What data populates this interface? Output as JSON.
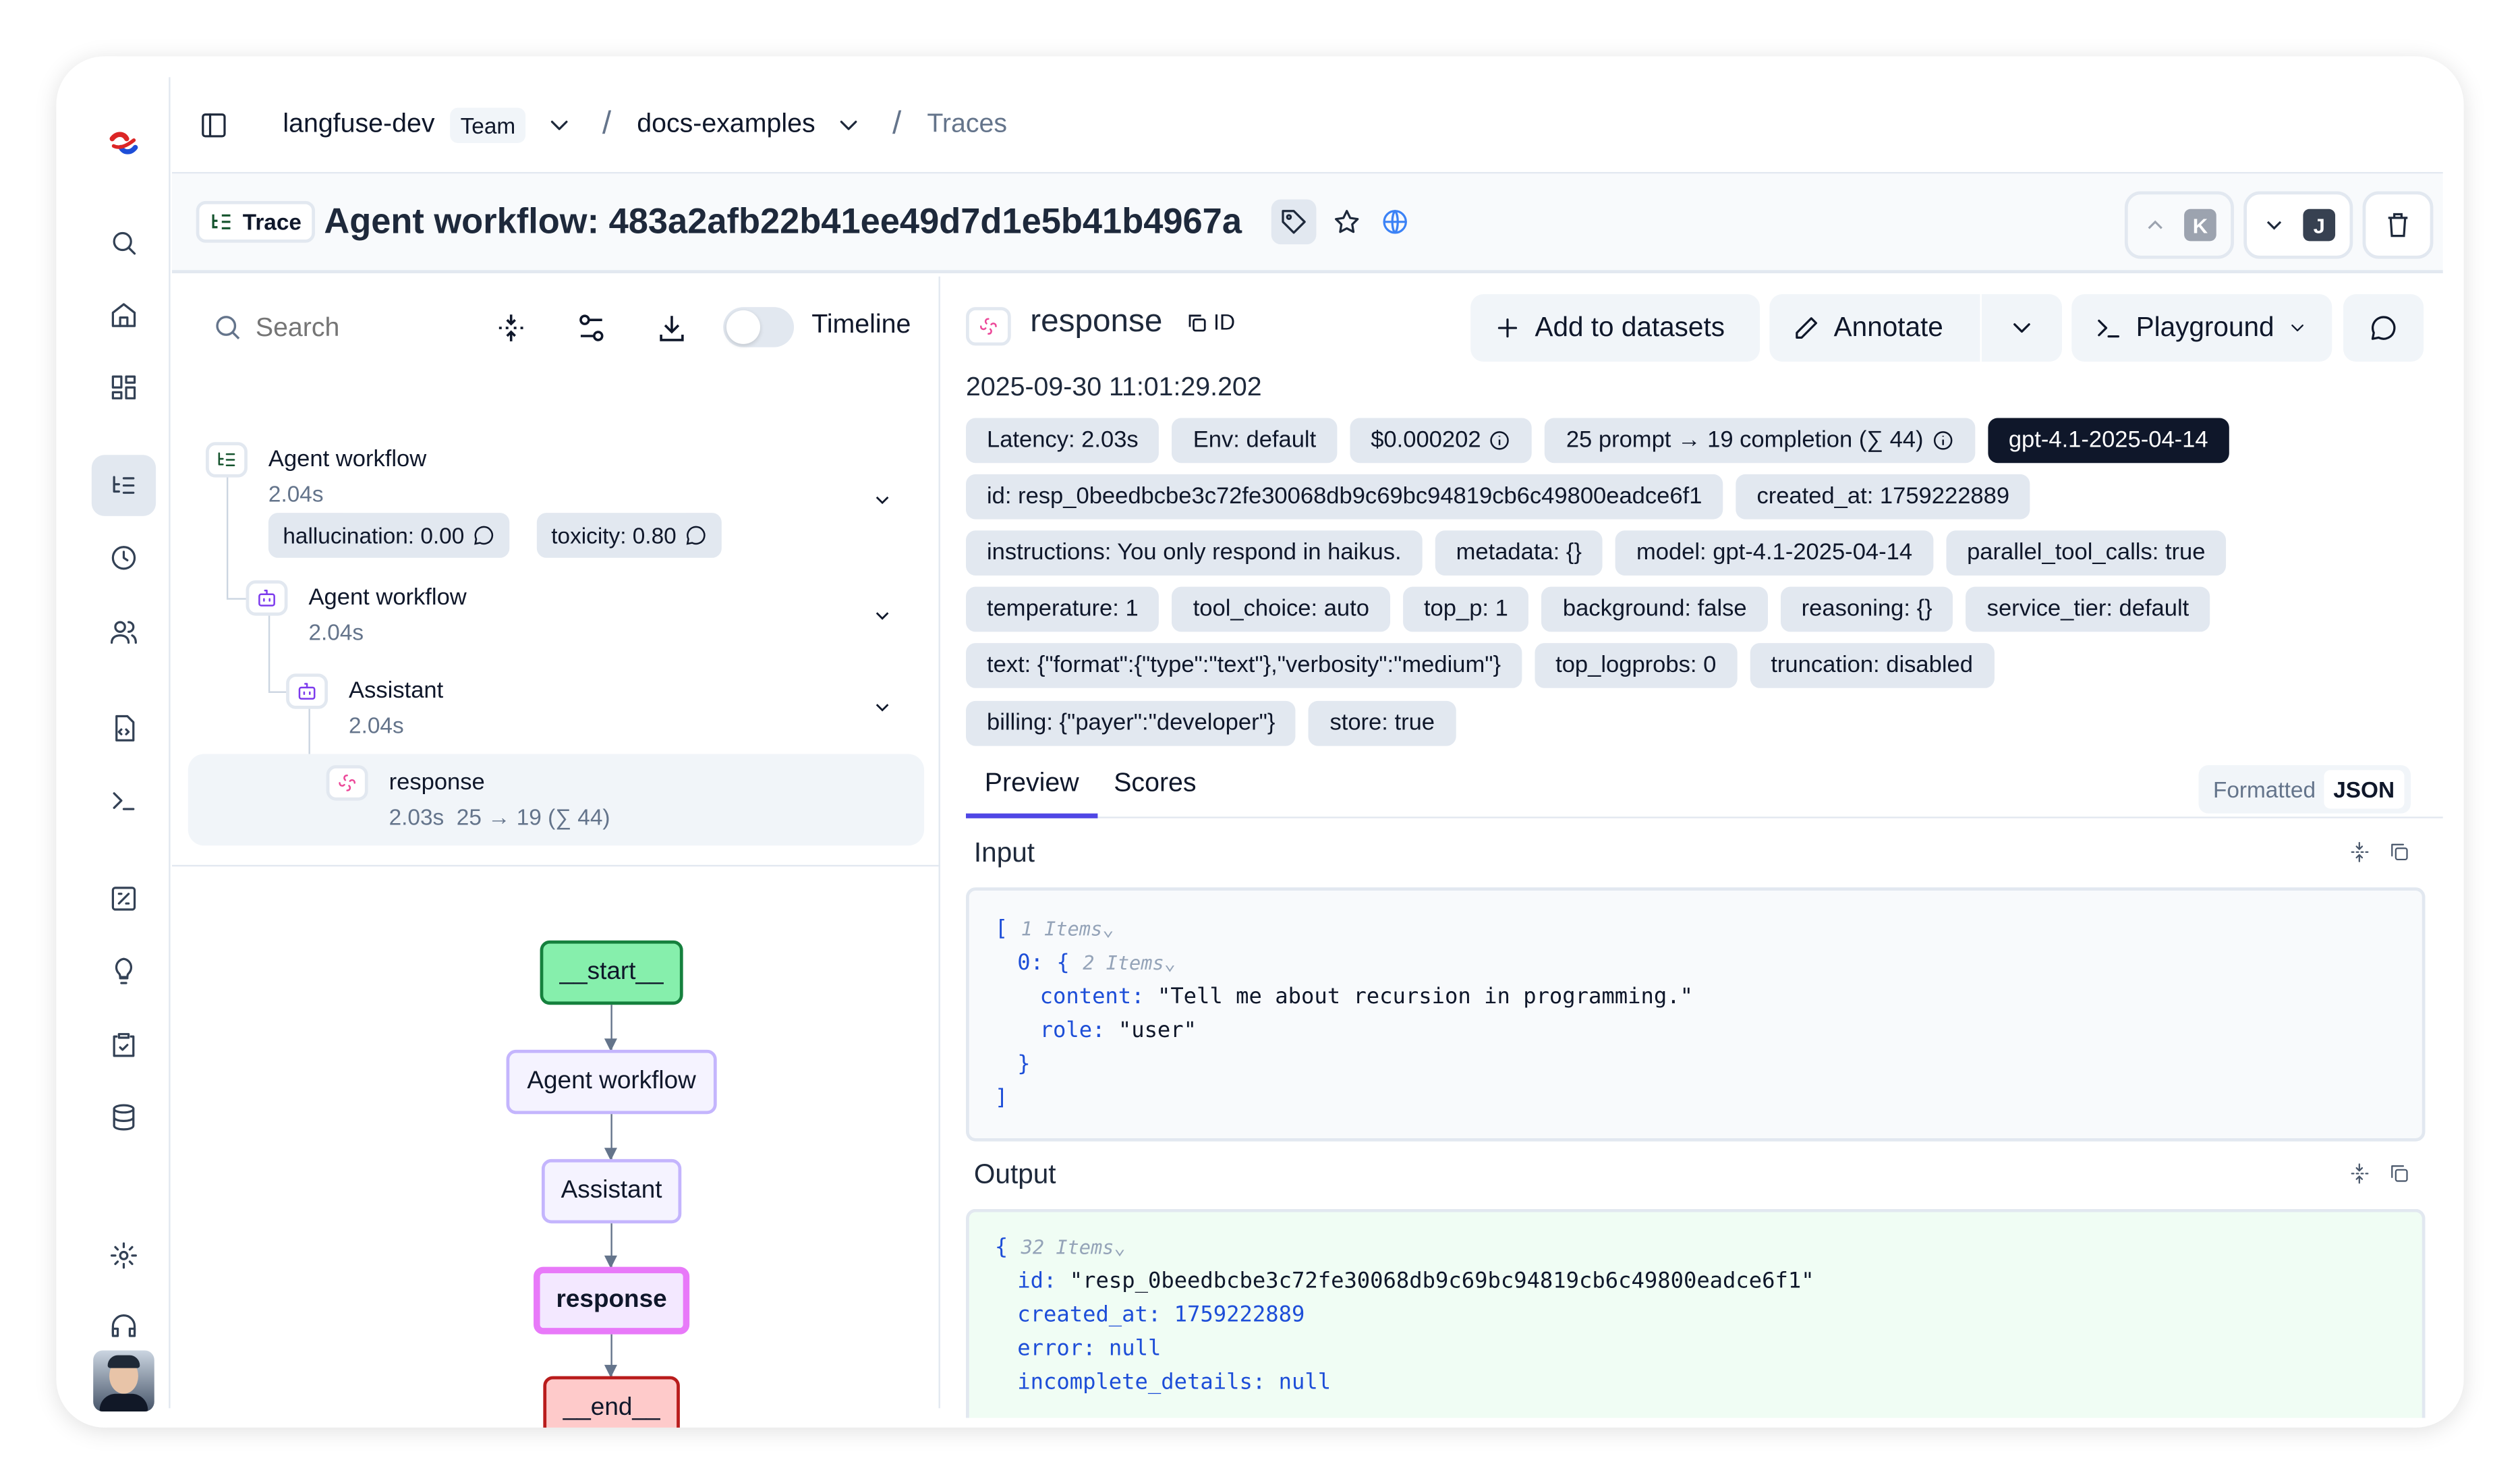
{
  "breadcrumb": {
    "org": "langfuse-dev",
    "org_badge": "Team",
    "project": "docs-examples",
    "page": "Traces"
  },
  "header": {
    "badge": "Trace",
    "title": "Agent workflow: 483a2afb22b41ee49d7d1e5b41b4967a",
    "prev_key": "K",
    "next_key": "J"
  },
  "tree": {
    "search_placeholder": "Search",
    "timeline_label": "Timeline",
    "timeline_on": false,
    "nodes": [
      {
        "name": "Agent workflow",
        "duration": "2.04s",
        "scores": [
          "hallucination: 0.00",
          "toxicity: 0.80"
        ]
      },
      {
        "name": "Agent workflow",
        "duration": "2.04s"
      },
      {
        "name": "Assistant",
        "duration": "2.04s"
      },
      {
        "name": "response",
        "duration": "2.03s",
        "tokens": "25 → 19 (∑ 44)"
      }
    ]
  },
  "graph": {
    "nodes": [
      "__start__",
      "Agent workflow",
      "Assistant",
      "response",
      "__end__"
    ]
  },
  "detail": {
    "name": "response",
    "id_label": "ID",
    "timestamp": "2025-09-30 11:01:29.202",
    "actions": {
      "add_to_datasets": "Add to datasets",
      "annotate": "Annotate",
      "playground": "Playground"
    },
    "chips": [
      "Latency: 2.03s",
      "Env: default",
      "$0.000202",
      "25 prompt → 19 completion (∑ 44)",
      "gpt-4.1-2025-04-14",
      "id: resp_0beedbcbe3c72fe30068db9c69bc94819cb6c49800eadce6f1",
      "created_at: 1759222889",
      "instructions: You only respond in haikus.",
      "metadata: {}",
      "model: gpt-4.1-2025-04-14",
      "parallel_tool_calls: true",
      "temperature: 1",
      "tool_choice: auto",
      "top_p: 1",
      "background: false",
      "reasoning: {}",
      "service_tier: default",
      "text: {\"format\":{\"type\":\"text\"},\"verbosity\":\"medium\"}",
      "top_logprobs: 0",
      "truncation: disabled",
      "billing: {\"payer\":\"developer\"}",
      "store: true"
    ],
    "tabs": [
      "Preview",
      "Scores"
    ],
    "view_toggle": [
      "Formatted",
      "JSON"
    ],
    "input_label": "Input",
    "output_label": "Output",
    "input": {
      "count": "1 Items",
      "item_key": "0:",
      "item_count": "2 Items",
      "content_key": "content:",
      "content": "\"Tell me about recursion in programming.\"",
      "role_key": "role:",
      "role": "\"user\""
    },
    "output": {
      "count": "32 Items",
      "id_key": "id:",
      "id": "\"resp_0beedbcbe3c72fe30068db9c69bc94819cb6c49800eadce6f1\"",
      "created_key": "created_at:",
      "created": "1759222889",
      "error_key": "error:",
      "error": "null",
      "incomplete_key": "incomplete_details:",
      "incomplete": "null"
    }
  },
  "colors": {
    "accent": "#4f46e5",
    "model_chip": "#0f172a",
    "output_bg": "#f0fdf4",
    "start": "#86efac",
    "end": "#fecaca",
    "selected": "#e879f9"
  }
}
